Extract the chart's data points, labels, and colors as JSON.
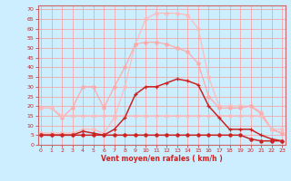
{
  "x": [
    0,
    1,
    2,
    3,
    4,
    5,
    6,
    7,
    8,
    9,
    10,
    11,
    12,
    13,
    14,
    15,
    16,
    17,
    18,
    19,
    20,
    21,
    22,
    23
  ],
  "rafales_max": [
    6,
    6,
    6,
    6,
    8,
    8,
    6,
    14,
    30,
    52,
    65,
    68,
    68,
    68,
    67,
    60,
    35,
    20,
    20,
    20,
    20,
    17,
    8,
    6
  ],
  "rafales_mid": [
    19,
    19,
    14,
    19,
    30,
    30,
    19,
    30,
    40,
    52,
    53,
    53,
    52,
    50,
    48,
    42,
    25,
    19,
    19,
    19,
    20,
    16,
    8,
    6
  ],
  "vent_dark1": [
    5,
    5,
    5,
    5,
    7,
    6,
    5,
    8,
    14,
    26,
    30,
    30,
    32,
    34,
    33,
    31,
    20,
    14,
    8,
    8,
    8,
    5,
    3,
    2
  ],
  "vent_flat_pink": [
    19,
    19,
    15,
    15,
    15,
    15,
    15,
    15,
    15,
    15,
    15,
    15,
    15,
    15,
    15,
    15,
    15,
    15,
    15,
    15,
    15,
    15,
    8,
    8
  ],
  "vent_moyen": [
    5,
    5,
    5,
    5,
    5,
    5,
    5,
    5,
    5,
    5,
    5,
    5,
    5,
    5,
    5,
    5,
    5,
    5,
    5,
    5,
    3,
    2,
    2,
    2
  ],
  "color_light_pink": "#ffbbbb",
  "color_mid_pink": "#ffaaaa",
  "color_dark_red": "#cc2222",
  "color_flat_pink": "#ffbbbb",
  "bg_color": "#cceeff",
  "grid_color": "#ff9999",
  "xlabel": "Vent moyen/en rafales ( km/h )",
  "xlabel_color": "#cc2222",
  "yticks": [
    0,
    5,
    10,
    15,
    20,
    25,
    30,
    35,
    40,
    45,
    50,
    55,
    60,
    65,
    70
  ],
  "xticks": [
    0,
    1,
    2,
    3,
    4,
    5,
    6,
    7,
    8,
    9,
    10,
    11,
    12,
    13,
    14,
    15,
    16,
    17,
    18,
    19,
    20,
    21,
    22,
    23
  ],
  "ylim": [
    0,
    72
  ],
  "xlim": [
    -0.3,
    23.3
  ]
}
